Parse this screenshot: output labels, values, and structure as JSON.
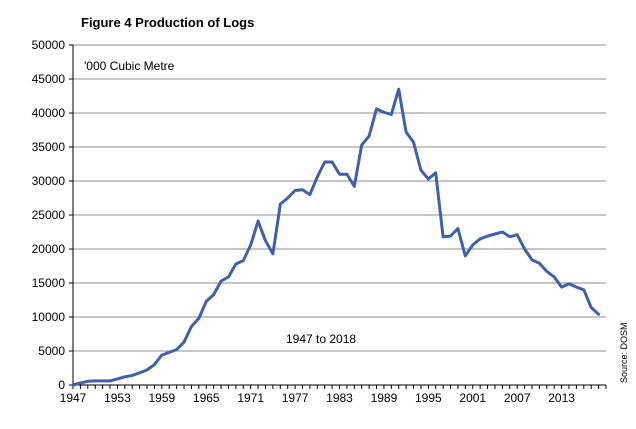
{
  "chart_data": {
    "type": "line",
    "title": "Figure 4 Production of Logs",
    "unit_label": "'000 Cubic Metre",
    "annotation": "1947 to 2018",
    "source": "Source: DOSM",
    "xlabel": "",
    "ylabel": "",
    "x_tick_labels": [
      "1947",
      "1953",
      "1959",
      "1965",
      "1971",
      "1977",
      "1983",
      "1989",
      "1995",
      "2001",
      "2007",
      "2013"
    ],
    "y_tick_labels": [
      "0",
      "5000",
      "10000",
      "15000",
      "20000",
      "25000",
      "30000",
      "35000",
      "40000",
      "45000",
      "50000"
    ],
    "ylim": [
      0,
      50000
    ],
    "xlim": [
      1947,
      2019
    ],
    "grid": "horizontal",
    "line_color": "#4060A8",
    "series": [
      {
        "x": [
          1947,
          1948,
          1949,
          1950,
          1951,
          1952,
          1953,
          1954,
          1955,
          1956,
          1957,
          1958,
          1959,
          1960,
          1961,
          1962,
          1963,
          1964,
          1965,
          1966,
          1967,
          1968,
          1969,
          1970,
          1971,
          1972,
          1973,
          1974,
          1975,
          1976,
          1977,
          1978,
          1979,
          1980,
          1981,
          1982,
          1983,
          1984,
          1985,
          1986,
          1987,
          1988,
          1989,
          1990,
          1991,
          1992,
          1993,
          1994,
          1995,
          1996,
          1997,
          1998,
          1999,
          2000,
          2001,
          2002,
          2003,
          2004,
          2005,
          2006,
          2007,
          2008,
          2009,
          2010,
          2011,
          2012,
          2013,
          2014,
          2015,
          2016,
          2017,
          2018
        ],
        "y": [
          0,
          300,
          550,
          600,
          600,
          600,
          900,
          1200,
          1400,
          1800,
          2200,
          3000,
          4400,
          4800,
          5200,
          6300,
          8600,
          9800,
          12300,
          13300,
          15300,
          15900,
          17800,
          18300,
          20600,
          24100,
          21200,
          19300,
          26600,
          27500,
          28600,
          28700,
          28000,
          30600,
          32800,
          32800,
          31000,
          31000,
          29200,
          35300,
          36600,
          40600,
          40100,
          39800,
          43500,
          37200,
          35700,
          31600,
          30300,
          31200,
          21800,
          21900,
          23000,
          19000,
          20600,
          21500,
          21900,
          22200,
          22500,
          21800,
          22100,
          20000,
          18400,
          17900,
          16700,
          15900,
          14400,
          14900,
          14400,
          14000,
          11400,
          10400
        ]
      }
    ]
  }
}
